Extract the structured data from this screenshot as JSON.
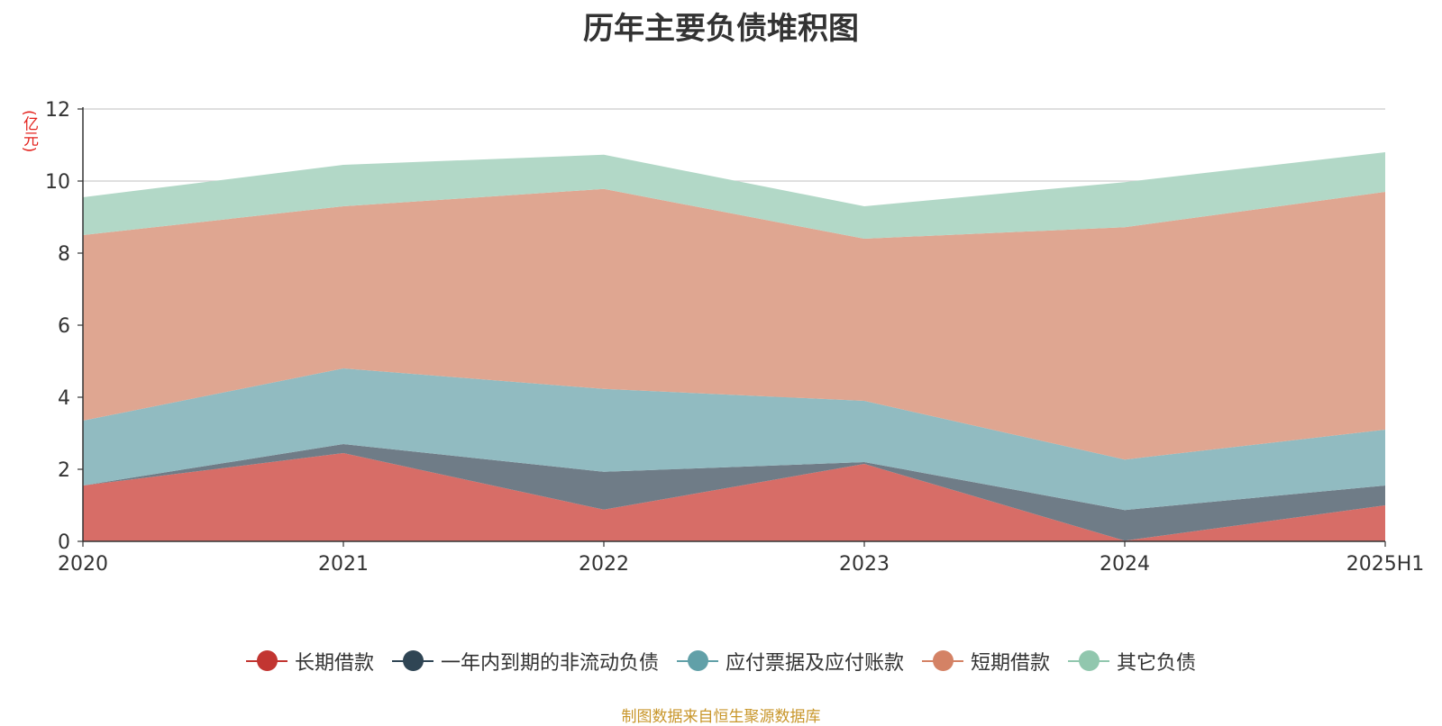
{
  "chart_data": {
    "type": "area",
    "stacked": true,
    "title": "历年主要负债堆积图",
    "unit": "(亿元)",
    "categories": [
      "2020",
      "2021",
      "2022",
      "2023",
      "2024",
      "2025H1"
    ],
    "ylim": [
      0,
      12
    ],
    "yticks": [
      0,
      2,
      4,
      6,
      8,
      10,
      12
    ],
    "grid": true,
    "legend_position": "bottom",
    "series": [
      {
        "name": "长期借款",
        "color": "#d76d67",
        "legend_color": "#c23531",
        "values": [
          1.55,
          2.45,
          0.88,
          2.15,
          0.02,
          1.0
        ]
      },
      {
        "name": "一年内到期的非流动负债",
        "color": "#6f7c87",
        "legend_color": "#2f4554",
        "values": [
          0.0,
          0.25,
          1.05,
          0.05,
          0.85,
          0.55
        ]
      },
      {
        "name": "应付票据及应付账款",
        "color": "#91bbc1",
        "legend_color": "#61a0a8",
        "values": [
          1.8,
          2.1,
          2.3,
          1.7,
          1.4,
          1.55
        ]
      },
      {
        "name": "短期借款",
        "color": "#dfa691",
        "legend_color": "#d48265",
        "values": [
          5.15,
          4.5,
          5.55,
          4.5,
          6.45,
          6.6
        ]
      },
      {
        "name": "其它负债",
        "color": "#b2d8c7",
        "legend_color": "#91c7ae",
        "values": [
          1.05,
          1.15,
          0.95,
          0.9,
          1.25,
          1.1
        ]
      }
    ]
  },
  "source_note": "制图数据来自恒生聚源数据库"
}
